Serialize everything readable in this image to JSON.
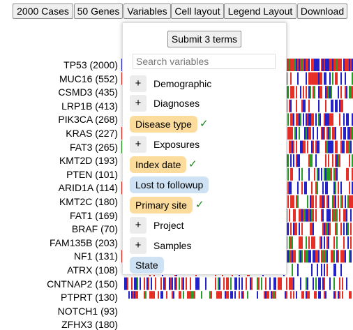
{
  "toolbar": {
    "cases": "2000 Cases",
    "genes": "50 Genes",
    "variables": "Variables",
    "cell_layout": "Cell layout",
    "legend_layout": "Legend Layout",
    "download": "Download"
  },
  "genes": [
    "TP53 (2000)",
    "MUC16 (552)",
    "CSMD3 (435)",
    "LRP1B (413)",
    "PIK3CA (268)",
    "KRAS (227)",
    "FAT3 (265)",
    "KMT2D (193)",
    "PTEN (101)",
    "ARID1A (114)",
    "KMT2C (180)",
    "FAT1 (169)",
    "BRAF (70)",
    "FAM135B (203)",
    "NF1 (131)",
    "ATRX (108)",
    "CNTNAP2 (150)",
    "PTPRT (130)",
    "NOTCH1 (93)",
    "ZFHX3 (180)"
  ],
  "variables_menu": {
    "submit_label": "Submit 3 terms",
    "search_placeholder": "Search variables",
    "items": {
      "demographic": "Demographic",
      "diagnoses": "Diagnoses",
      "disease_type": "Disease type",
      "exposures": "Exposures",
      "index_date": "Index date",
      "lost_to_followup": "Lost to followup",
      "primary_site": "Primary site",
      "project": "Project",
      "samples": "Samples",
      "state": "State"
    },
    "plus": "+",
    "check": "✓"
  },
  "colors": {
    "selected_term": "#fbdc9c",
    "unselected_term": "#cfe2f3",
    "missense": "#e63027",
    "truncating": "#2222c8",
    "inframe": "#2a9c2a",
    "check": "#1a8a1a"
  }
}
